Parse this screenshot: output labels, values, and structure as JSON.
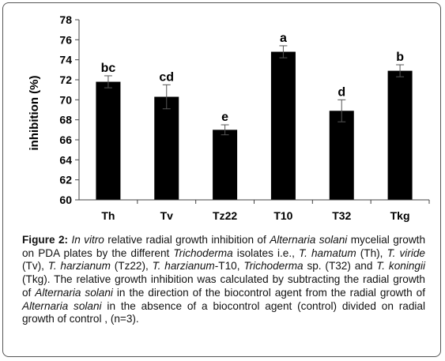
{
  "chart_data": {
    "type": "bar",
    "categories": [
      "Th",
      "Tv",
      "Tz22",
      "T10",
      "T32",
      "Tkg"
    ],
    "values": [
      71.8,
      70.3,
      67.0,
      74.8,
      68.9,
      72.9
    ],
    "errors": [
      0.6,
      1.2,
      0.5,
      0.6,
      1.1,
      0.6
    ],
    "data_labels": [
      "bc",
      "cd",
      "e",
      "a",
      "d",
      "b"
    ],
    "xlabel": "",
    "ylabel": "inhibition (%)",
    "ylim": [
      60,
      78
    ],
    "yticks": [
      60,
      62,
      64,
      66,
      68,
      70,
      72,
      74,
      76,
      78
    ],
    "bar_color": "#000000",
    "grid": false,
    "legend": "none"
  },
  "caption": {
    "label": "Figure 2:",
    "segments": [
      {
        "text": " ",
        "italic": false
      },
      {
        "text": "In vitro",
        "italic": true
      },
      {
        "text": " relative radial growth inhibition of ",
        "italic": false
      },
      {
        "text": "Alternaria solani",
        "italic": true
      },
      {
        "text": " mycelial growth on PDA plates by the different ",
        "italic": false
      },
      {
        "text": "Trichoderma",
        "italic": true
      },
      {
        "text": " isolates i.e., ",
        "italic": false
      },
      {
        "text": "T. hamatum",
        "italic": true
      },
      {
        "text": " (Th), ",
        "italic": false
      },
      {
        "text": "T. viride",
        "italic": true
      },
      {
        "text": " (Tv), ",
        "italic": false
      },
      {
        "text": "T. harzianum",
        "italic": true
      },
      {
        "text": " (Tz22), ",
        "italic": false
      },
      {
        "text": "T. harzianum",
        "italic": true
      },
      {
        "text": "-T10, ",
        "italic": false
      },
      {
        "text": "Trichoderma",
        "italic": true
      },
      {
        "text": " sp. (T32) and ",
        "italic": false
      },
      {
        "text": "T. koningii",
        "italic": true
      },
      {
        "text": " (Tkg). The relative growth inhibition was calculated by subtracting the radial growth of ",
        "italic": false
      },
      {
        "text": "Alternaria solani",
        "italic": true
      },
      {
        "text": " in the direction of the biocontrol agent from the radial growth of ",
        "italic": false
      },
      {
        "text": "Alternaria solani",
        "italic": true
      },
      {
        "text": " in the absence of a biocontrol agent (control) divided on radial growth of control , (n=3).",
        "italic": false
      }
    ]
  }
}
